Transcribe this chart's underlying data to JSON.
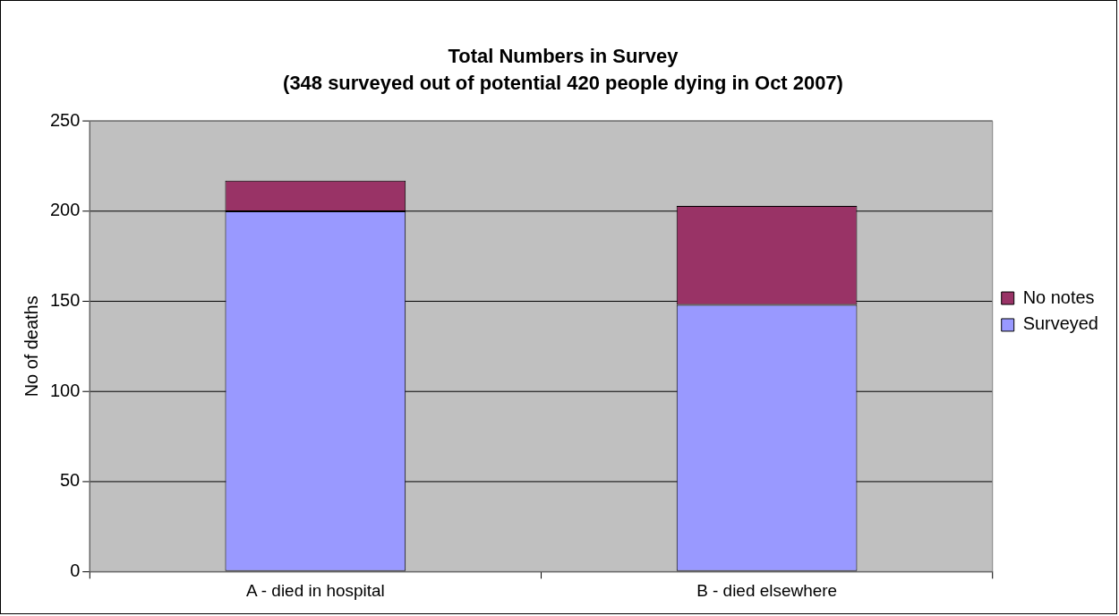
{
  "chart_data": {
    "type": "bar",
    "title": "Total Numbers in Survey",
    "subtitle": "(348 surveyed out of potential 420 people dying in Oct 2007)",
    "ylabel": "No of deaths",
    "categories": [
      "A - died in hospital",
      "B - died elsewhere"
    ],
    "series": [
      {
        "name": "Surveyed",
        "color": "#9999ff",
        "values": [
          200,
          148
        ]
      },
      {
        "name": "No notes",
        "color": "#993366",
        "values": [
          17,
          55
        ]
      }
    ],
    "stacked": true,
    "ylim": [
      0,
      250
    ],
    "yticks": [
      0,
      50,
      100,
      150,
      200,
      250
    ],
    "grid": "y",
    "legend": "right"
  }
}
